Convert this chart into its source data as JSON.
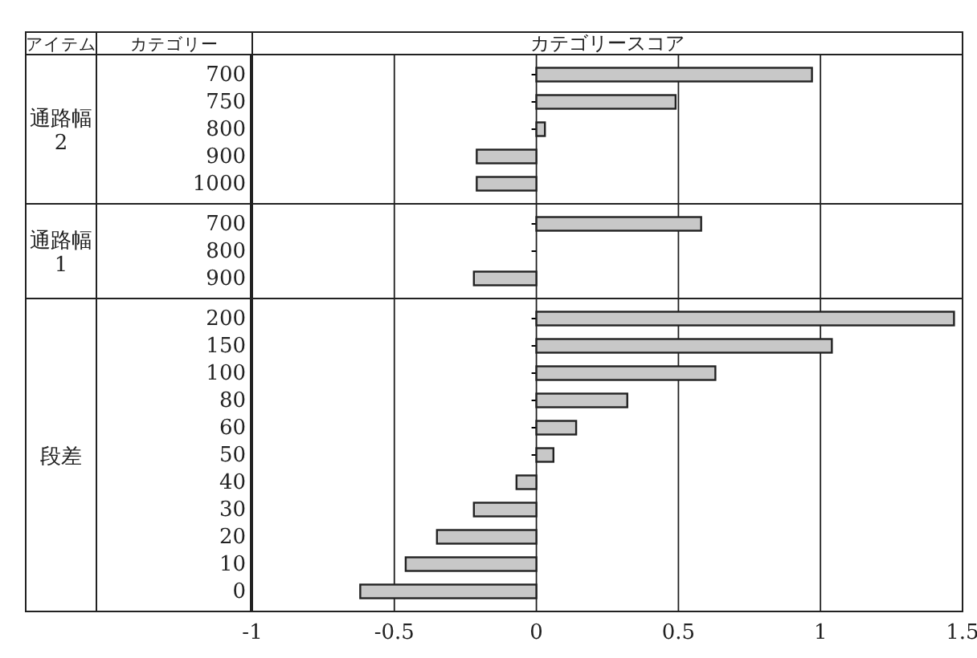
{
  "chart_data": [
    {
      "type": "bar",
      "orientation": "horizontal",
      "xlabel": "カテゴリースコア",
      "annotations": [
        "アイテム",
        "カテゴリー"
      ],
      "ylabel": "通路幅2",
      "categories": [
        "700",
        "750",
        "800",
        "900",
        "1000"
      ],
      "values": [
        0.97,
        0.49,
        0.03,
        -0.21,
        -0.21
      ],
      "color": "#c8c8c8",
      "xlim": [
        -1,
        1.5
      ],
      "xticks": [
        -1,
        -0.5,
        0,
        0.5,
        1,
        1.5
      ],
      "grid": "x",
      "tick_labels": "y"
    },
    {
      "type": "bar",
      "orientation": "horizontal",
      "ylabel": "通路幅1",
      "categories": [
        "700",
        "800",
        "900"
      ],
      "values": [
        0.58,
        0,
        -0.22
      ],
      "color": "#c8c8c8",
      "xlim": [
        -1,
        1.5
      ],
      "xticks": [
        -1,
        -0.5,
        0,
        0.5,
        1,
        1.5
      ],
      "grid": "x",
      "tick_labels": "y"
    },
    {
      "type": "bar",
      "orientation": "horizontal",
      "ylabel": "段差",
      "categories": [
        "200",
        "150",
        "100",
        "80",
        "60",
        "50",
        "40",
        "30",
        "20",
        "10",
        "0"
      ],
      "values": [
        1.47,
        1.04,
        0.63,
        0.32,
        0.14,
        0.06,
        -0.07,
        -0.22,
        -0.35,
        -0.46,
        -0.62
      ],
      "color": "#c8c8c8",
      "xlim": [
        -1,
        1.5
      ],
      "xticks": [
        {
          "value": -1,
          "label": "-1"
        },
        {
          "value": -0.5,
          "label": "-0.5"
        },
        0,
        0.5,
        1,
        1.5
      ],
      "grid": "x"
    }
  ]
}
